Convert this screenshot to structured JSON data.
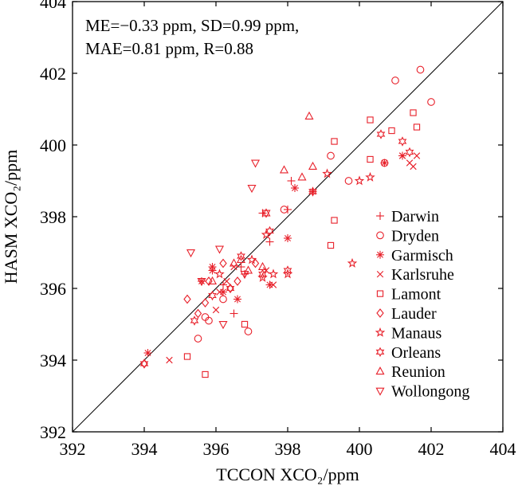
{
  "chart_data": {
    "type": "scatter",
    "annotation_lines": [
      "ME=−0.33 ppm, SD=0.99 ppm,",
      "MAE=0.81 ppm, R=0.88"
    ],
    "xlabel": "TCCON XCO₂/ppm",
    "ylabel": "HASM XCO₂/ppm",
    "xlim": [
      392,
      404
    ],
    "ylim": [
      392,
      404
    ],
    "xticks": [
      "392",
      "394",
      "396",
      "398",
      "400",
      "402",
      "404"
    ],
    "yticks": [
      "392",
      "394",
      "396",
      "398",
      "400",
      "402",
      "404"
    ],
    "one_to_one_line": true,
    "legend_position": "lower-right",
    "marker_color": "#e8202a",
    "series": [
      {
        "name": "Darwin",
        "marker": "plus",
        "points": [
          [
            396.2,
            396.1
          ],
          [
            396.5,
            395.3
          ],
          [
            397.5,
            397.3
          ],
          [
            397.3,
            398.1
          ],
          [
            398.0,
            398.2
          ],
          [
            398.1,
            399.0
          ],
          [
            396.7,
            396.6
          ],
          [
            396.8,
            396.4
          ]
        ]
      },
      {
        "name": "Dryden",
        "marker": "circle",
        "points": [
          [
            396.9,
            394.8
          ],
          [
            395.8,
            395.1
          ],
          [
            395.5,
            394.6
          ],
          [
            397.9,
            398.2
          ],
          [
            399.2,
            399.7
          ],
          [
            399.7,
            399.0
          ],
          [
            400.7,
            399.5
          ],
          [
            401.0,
            401.8
          ],
          [
            401.7,
            402.1
          ],
          [
            402.0,
            401.2
          ],
          [
            395.7,
            395.2
          ],
          [
            396.2,
            395.7
          ]
        ]
      },
      {
        "name": "Garmisch",
        "marker": "asterisk",
        "points": [
          [
            394.1,
            394.2
          ],
          [
            395.6,
            396.2
          ],
          [
            395.9,
            396.5
          ],
          [
            396.2,
            395.9
          ],
          [
            396.6,
            395.7
          ],
          [
            397.5,
            396.1
          ],
          [
            398.0,
            397.4
          ],
          [
            398.2,
            398.8
          ],
          [
            398.7,
            398.7
          ],
          [
            401.2,
            399.7
          ],
          [
            400.7,
            399.5
          ],
          [
            395.9,
            396.6
          ]
        ]
      },
      {
        "name": "Karlsruhe",
        "marker": "x",
        "points": [
          [
            394.7,
            394.0
          ],
          [
            396.0,
            395.4
          ],
          [
            396.1,
            395.9
          ],
          [
            396.5,
            396.6
          ],
          [
            397.4,
            396.5
          ],
          [
            401.2,
            399.7
          ],
          [
            401.4,
            399.5
          ],
          [
            401.6,
            399.7
          ],
          [
            401.5,
            399.4
          ],
          [
            397.6,
            396.1
          ],
          [
            396.3,
            396.2
          ]
        ]
      },
      {
        "name": "Lamont",
        "marker": "square",
        "points": [
          [
            395.7,
            393.6
          ],
          [
            395.2,
            394.1
          ],
          [
            396.8,
            395.0
          ],
          [
            399.2,
            397.2
          ],
          [
            399.3,
            397.9
          ],
          [
            400.3,
            399.6
          ],
          [
            400.3,
            400.7
          ],
          [
            400.9,
            400.4
          ],
          [
            401.5,
            400.9
          ],
          [
            401.6,
            400.5
          ],
          [
            399.3,
            400.1
          ]
        ]
      },
      {
        "name": "Lauder",
        "marker": "diamond",
        "points": [
          [
            394.0,
            393.9
          ],
          [
            395.2,
            395.7
          ],
          [
            395.7,
            395.6
          ],
          [
            395.8,
            396.2
          ],
          [
            396.2,
            396.7
          ],
          [
            396.6,
            396.2
          ],
          [
            396.4,
            396.0
          ],
          [
            395.5,
            395.3
          ],
          [
            397.1,
            396.7
          ]
        ]
      },
      {
        "name": "Manaus",
        "marker": "star",
        "points": [
          [
            397.0,
            396.8
          ],
          [
            397.4,
            397.5
          ],
          [
            397.3,
            396.3
          ],
          [
            399.1,
            399.2
          ],
          [
            400.0,
            399.0
          ],
          [
            400.3,
            399.1
          ],
          [
            399.8,
            396.7
          ],
          [
            397.6,
            396.4
          ],
          [
            398.0,
            396.4
          ],
          [
            396.1,
            396.4
          ]
        ]
      },
      {
        "name": "Orleans",
        "marker": "star6",
        "points": [
          [
            394.0,
            393.9
          ],
          [
            395.4,
            395.1
          ],
          [
            395.9,
            395.8
          ],
          [
            396.4,
            396.0
          ],
          [
            397.3,
            396.4
          ],
          [
            397.5,
            397.6
          ],
          [
            398.0,
            396.5
          ],
          [
            398.7,
            398.7
          ],
          [
            400.6,
            400.3
          ],
          [
            401.2,
            400.1
          ],
          [
            401.4,
            399.8
          ],
          [
            396.7,
            396.9
          ]
        ]
      },
      {
        "name": "Reunion",
        "marker": "triangle-up",
        "points": [
          [
            395.9,
            396.2
          ],
          [
            396.5,
            396.7
          ],
          [
            396.9,
            396.5
          ],
          [
            397.3,
            396.6
          ],
          [
            397.4,
            398.1
          ],
          [
            397.9,
            399.3
          ],
          [
            398.4,
            399.1
          ],
          [
            398.7,
            399.4
          ],
          [
            398.6,
            400.8
          ],
          [
            396.7,
            396.8
          ]
        ]
      },
      {
        "name": "Wollongong",
        "marker": "triangle-down",
        "points": [
          [
            395.3,
            397.0
          ],
          [
            396.1,
            397.1
          ],
          [
            396.2,
            395.0
          ],
          [
            396.8,
            396.4
          ],
          [
            397.0,
            398.8
          ],
          [
            397.1,
            399.5
          ],
          [
            397.4,
            398.1
          ],
          [
            395.6,
            396.2
          ]
        ]
      }
    ]
  }
}
